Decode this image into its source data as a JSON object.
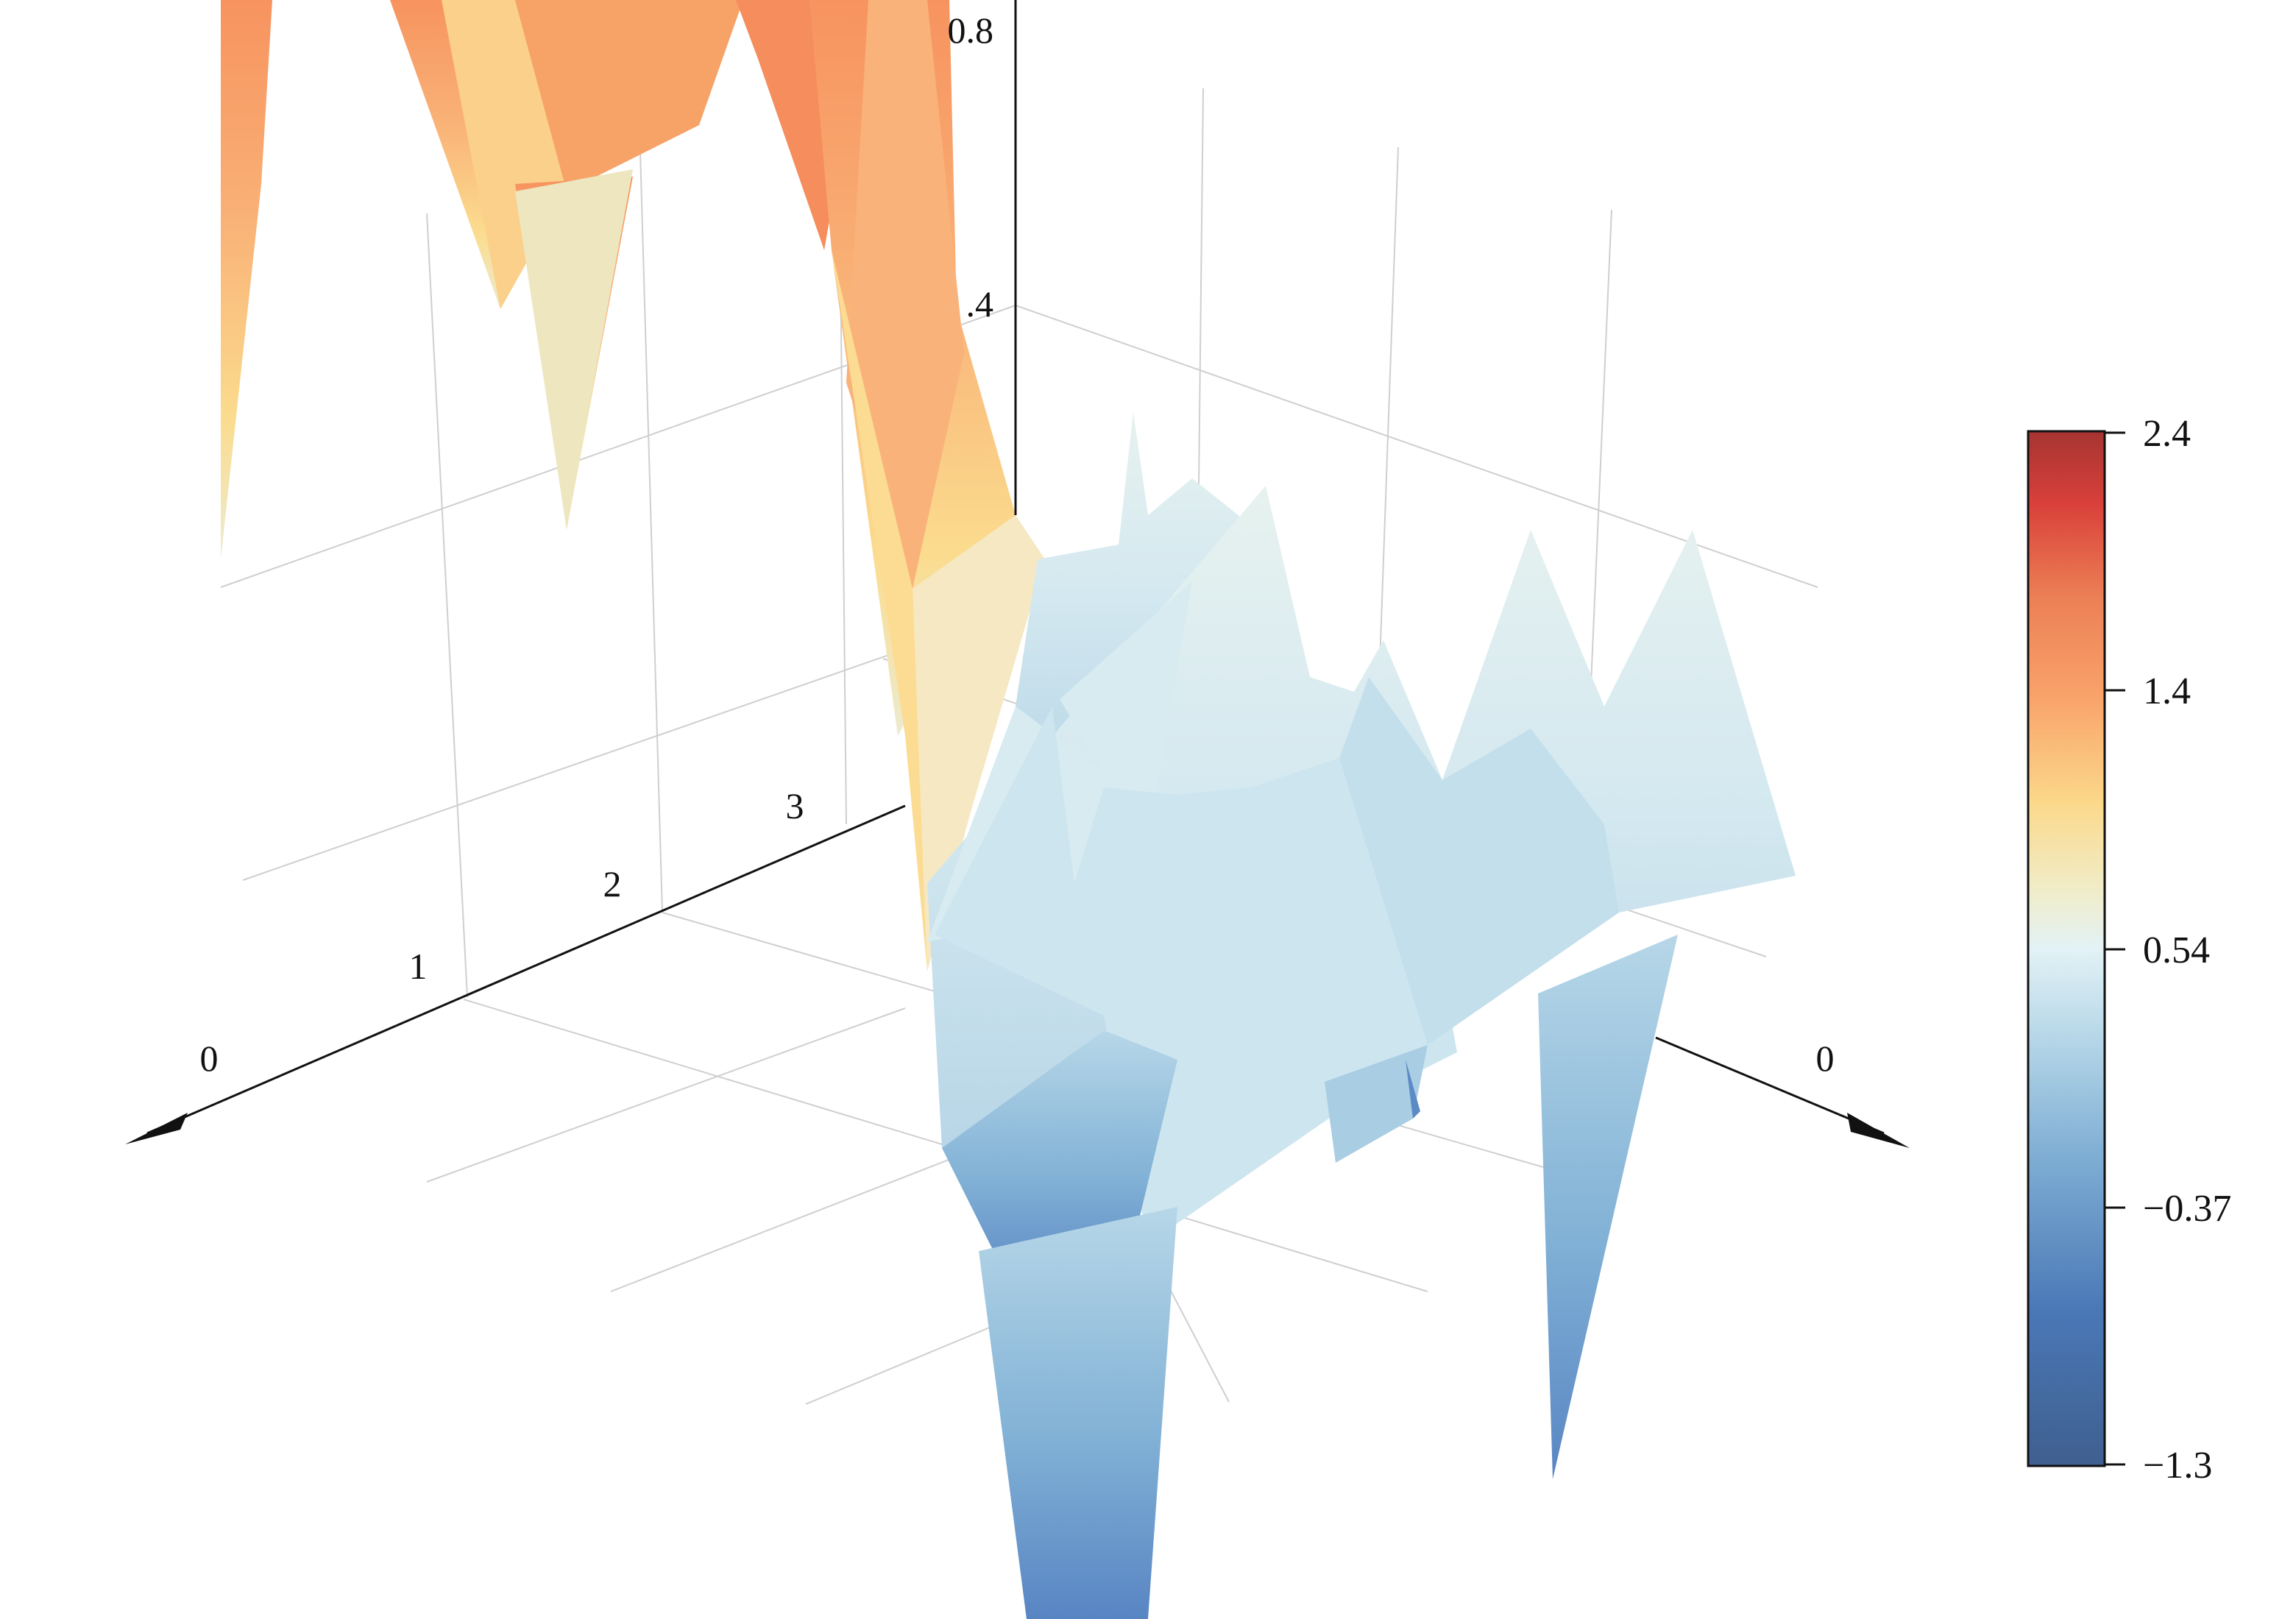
{
  "chart_data": {
    "type": "surface3d",
    "title": "",
    "xlabel": "",
    "ylabel": "",
    "zlabel": "",
    "z_ticks": [
      "0.8",
      ".4"
    ],
    "x_ticks": [
      "0",
      "1",
      "2",
      "3"
    ],
    "y_ticks": [
      "0"
    ],
    "grid": true,
    "colorbar": {
      "position": "right",
      "min": -1.3,
      "max": 2.4,
      "ticks": [
        "2.4",
        "1.4",
        "0.54",
        "−0.37",
        "−1.3"
      ],
      "colors": [
        "#3f5f8f",
        "#4a78b6",
        "#7faed4",
        "#b9d9e9",
        "#e3f2f6",
        "#f1ecc6",
        "#fbd98b",
        "#f9a46b",
        "#ec7f55",
        "#d9403a",
        "#a63432"
      ]
    },
    "surface_values": [
      [
        0.6,
        1.3,
        0.9,
        1.5,
        1.6,
        0.8,
        0.3,
        0.1,
        0.2,
        0.0
      ],
      [
        1.0,
        0.7,
        1.2,
        1.4,
        1.1,
        0.4,
        0.0,
        0.3,
        -0.1,
        0.1
      ],
      [
        0.8,
        0.5,
        1.1,
        1.3,
        0.9,
        0.2,
        0.4,
        0.0,
        0.3,
        0.2
      ],
      [
        0.7,
        0.4,
        0.9,
        1.0,
        0.6,
        0.1,
        0.0,
        0.4,
        0.1,
        0.3
      ],
      [
        0.5,
        0.3,
        0.6,
        0.7,
        0.3,
        0.2,
        0.1,
        0.0,
        0.4,
        0.0
      ],
      [
        0.4,
        0.5,
        0.3,
        0.2,
        0.1,
        0.0,
        0.3,
        -0.1,
        0.0,
        0.2
      ],
      [
        0.3,
        0.0,
        -1.2,
        -0.4,
        0.2,
        0.1,
        0.0,
        0.2,
        -0.9,
        0.1
      ],
      [
        0.2,
        0.1,
        0.0,
        0.3,
        0.1,
        -0.1,
        0.2,
        0.0,
        0.1,
        0.0
      ]
    ]
  }
}
